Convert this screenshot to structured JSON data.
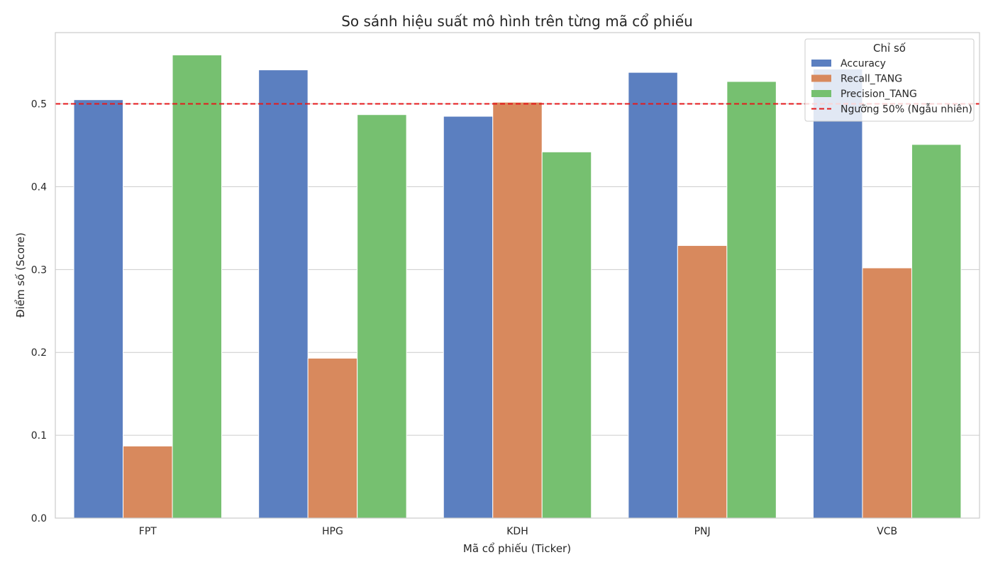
{
  "chart_data": {
    "type": "bar",
    "title": "So sánh hiệu suất mô hình trên từng mã cổ phiếu",
    "xlabel": "Mã cổ phiếu (Ticker)",
    "ylabel": "Điểm số (Score)",
    "ylim": [
      0,
      0.586
    ],
    "yticks": [
      "0.0",
      "0.1",
      "0.2",
      "0.3",
      "0.4",
      "0.5"
    ],
    "grid": true,
    "categories": [
      "FPT",
      "HPG",
      "KDH",
      "PNJ",
      "VCB"
    ],
    "series": [
      {
        "name": "Accuracy",
        "color": "#5b7fc0",
        "values": [
          0.505,
          0.541,
          0.485,
          0.538,
          0.542
        ]
      },
      {
        "name": "Recall_TANG",
        "color": "#d8895d",
        "values": [
          0.087,
          0.193,
          0.502,
          0.329,
          0.302
        ]
      },
      {
        "name": "Precision_TANG",
        "color": "#76c070",
        "values": [
          0.559,
          0.487,
          0.442,
          0.527,
          0.451
        ]
      }
    ],
    "reference_line": {
      "name": "Ngưỡng 50% (Ngẫu nhiên)",
      "value": 0.5,
      "color": "#e41a1c",
      "style": "dashed"
    },
    "legend": {
      "title": "Chỉ số",
      "placement": "top-right"
    }
  }
}
